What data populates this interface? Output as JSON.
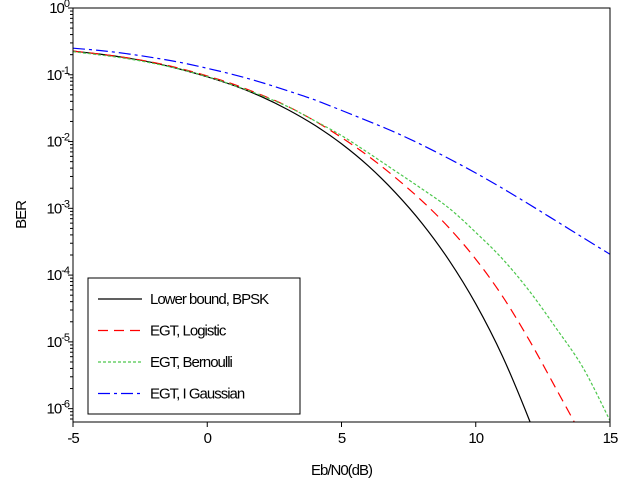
{
  "chart_data": {
    "type": "line",
    "title": "",
    "xlabel": "Eb/N0(dB)",
    "ylabel": "BER",
    "xlim": [
      -5,
      15
    ],
    "ylim_exponent": [
      -6.2,
      0
    ],
    "yscale": "log",
    "grid": false,
    "legend_position": "bottom-left",
    "x_ticks": [
      "-5",
      "0",
      "5",
      "10",
      "15"
    ],
    "y_ticks": [
      {
        "base": "10",
        "exp": "0"
      },
      {
        "base": "10",
        "exp": "-1"
      },
      {
        "base": "10",
        "exp": "-2"
      },
      {
        "base": "10",
        "exp": "-3"
      },
      {
        "base": "10",
        "exp": "-4"
      },
      {
        "base": "10",
        "exp": "-5"
      },
      {
        "base": "10",
        "exp": "-6"
      }
    ],
    "series": [
      {
        "name": "Lower bound, BPSK",
        "color": "#000000",
        "dash": "solid",
        "x": [
          -5,
          -4,
          -3,
          -2,
          -1,
          0,
          1,
          2,
          3,
          4,
          5,
          6,
          7,
          8,
          9,
          10,
          11,
          12,
          12.5
        ],
        "y": [
          0.226,
          0.204,
          0.179,
          0.151,
          0.121,
          0.0933,
          0.0688,
          0.0474,
          0.0301,
          0.0176,
          0.00927,
          0.00431,
          0.00173,
          0.000596,
          0.000168,
          3.71e-05,
          6.04e-06,
          6.68e-07,
          1.83e-07
        ]
      },
      {
        "name": "EGT, Logistic",
        "color": "#ff0000",
        "dash": "dash",
        "x": [
          -5,
          -4,
          -3,
          -2,
          -1,
          0,
          1,
          2,
          3,
          4,
          5,
          6,
          7,
          8,
          9,
          10,
          11,
          12,
          13,
          14,
          14.3
        ],
        "y": [
          0.226,
          0.204,
          0.18,
          0.153,
          0.124,
          0.096,
          0.0716,
          0.0502,
          0.0336,
          0.0204,
          0.0115,
          0.00604,
          0.0029,
          0.00129,
          0.000513,
          0.000173,
          4.79e-05,
          1.05e-05,
          1.96e-06,
          3.55e-07,
          1.86e-07
        ]
      },
      {
        "name": "EGT, Bernoulli",
        "color": "#4cc74c",
        "dash": "dot",
        "x": [
          -5,
          -4,
          -3,
          -2,
          -1,
          0,
          1,
          2,
          3,
          4,
          5,
          6,
          7,
          8,
          9,
          10,
          11,
          12,
          13,
          14,
          15
        ],
        "y": [
          0.222,
          0.198,
          0.175,
          0.148,
          0.121,
          0.0938,
          0.0693,
          0.0492,
          0.0333,
          0.0205,
          0.0123,
          0.00676,
          0.00363,
          0.00195,
          0.00101,
          0.000436,
          0.000174,
          5.75e-05,
          1.59e-05,
          4.07e-06,
          6.61e-07
        ]
      },
      {
        "name": "EGT, I Gaussian",
        "color": "#0000ff",
        "dash": "dashdot",
        "x": [
          -5,
          -4,
          -3,
          -2,
          -1,
          0,
          1,
          2,
          3,
          4,
          5,
          6,
          7,
          8,
          9,
          10,
          11,
          12,
          13,
          14,
          15
        ],
        "y": [
          0.25,
          0.231,
          0.207,
          0.18,
          0.153,
          0.125,
          0.1,
          0.0772,
          0.0575,
          0.0421,
          0.0293,
          0.0202,
          0.0137,
          0.00889,
          0.00555,
          0.00338,
          0.00199,
          0.00114,
          0.000644,
          0.000363,
          0.000205
        ]
      }
    ]
  }
}
